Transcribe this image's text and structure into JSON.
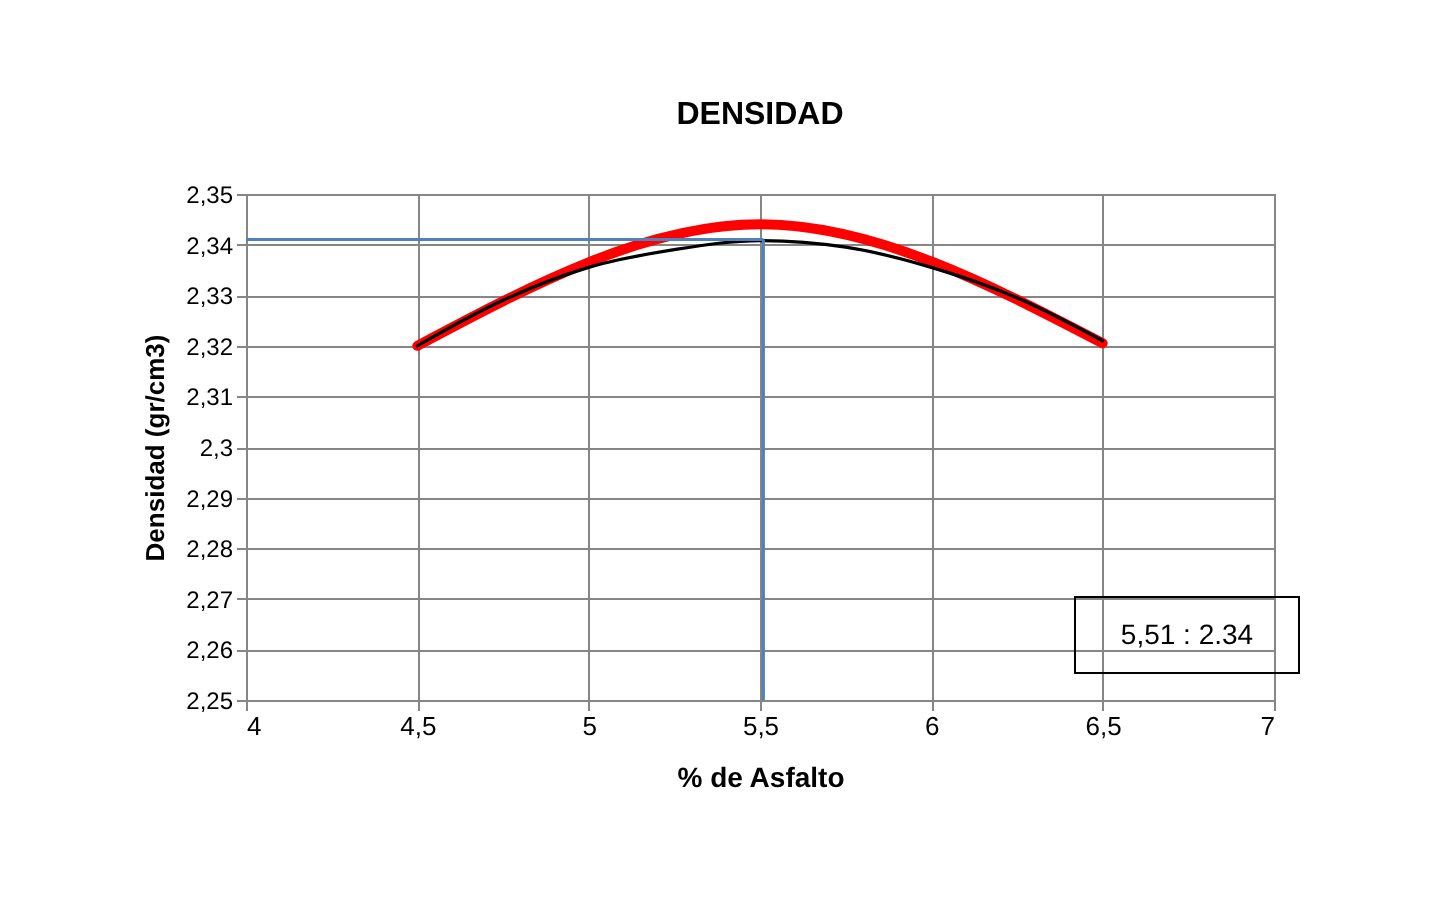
{
  "chart_data": {
    "type": "line",
    "title": "DENSIDAD",
    "xlabel": "% de Asfalto",
    "ylabel": "Densidad (gr/cm3)",
    "xlim": [
      4,
      7
    ],
    "ylim": [
      2.25,
      2.35
    ],
    "xticks": [
      4,
      {
        "value": 4.5,
        "label": "4,5"
      },
      5,
      {
        "value": 5.5,
        "label": "5,5"
      },
      6,
      {
        "value": 6.5,
        "label": "6,5"
      },
      7
    ],
    "yticks": [
      {
        "value": 2.25,
        "label": "2,25"
      },
      {
        "value": 2.26,
        "label": "2,26"
      },
      {
        "value": 2.27,
        "label": "2,27"
      },
      {
        "value": 2.28,
        "label": "2,28"
      },
      {
        "value": 2.29,
        "label": "2,29"
      },
      {
        "value": 2.3,
        "label": "2,3"
      },
      {
        "value": 2.31,
        "label": "2,31"
      },
      {
        "value": 2.32,
        "label": "2,32"
      },
      {
        "value": 2.33,
        "label": "2,33"
      },
      {
        "value": 2.34,
        "label": "2,34"
      },
      {
        "value": 2.35,
        "label": "2,35"
      }
    ],
    "grid": true,
    "line_style": "solid",
    "marker": "none",
    "series": [
      {
        "color": "#ff0000",
        "x": [
          4.5,
          5.5,
          6.5
        ],
        "values": [
          2.32,
          2.344,
          2.3205
        ]
      },
      {
        "color": "#000000",
        "x": [
          4.5,
          4.75,
          5,
          5.25,
          5.5,
          5.75,
          6,
          6.25,
          6.5
        ],
        "values": [
          2.32,
          2.329,
          2.3355,
          2.339,
          2.3408,
          2.3395,
          2.3355,
          2.3295,
          2.321
        ]
      }
    ],
    "ref_lines": [
      {
        "axis": "x",
        "value": 5.51,
        "color": "#4f81bd"
      },
      {
        "axis": "y",
        "value": 2.341,
        "color": "#4f81bd"
      }
    ],
    "annotations": [
      "5,51 : 2.34"
    ]
  }
}
